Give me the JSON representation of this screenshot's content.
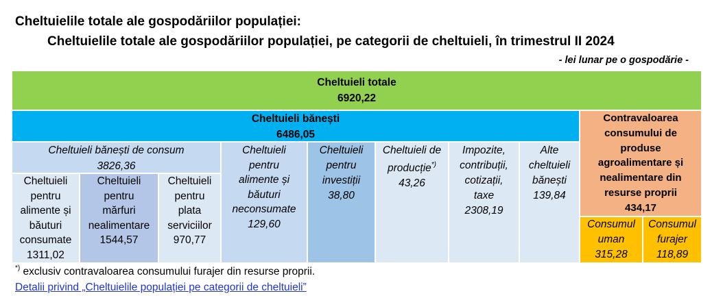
{
  "title_main": "Cheltuielile totale ale gospodăriilor populației:",
  "title_sub": "Cheltuielile totale ale gospodăriilor populației, pe categorii de cheltuieli, în trimestrul II 2024",
  "unit_note": "- lei lunar pe o gospodărie -",
  "colors": {
    "total": "#92d050",
    "banesti": "#00b0f0",
    "contravaloare": "#f4b183",
    "consum_group": "#c5d9f1",
    "consum_sub_mid": "#b4c6e7",
    "alimente_neconsumate": "#c5d9f1",
    "investitii": "#9dc3e6",
    "light": "#dde8f5",
    "gold": "#ffc000"
  },
  "table": {
    "total": {
      "label": "Cheltuieli totale",
      "value": "6920,22"
    },
    "banesti": {
      "label": "Cheltuieli bănești",
      "value": "6486,05"
    },
    "contravaloare": {
      "lines": [
        "Contravaloarea",
        "consumului de",
        "produse",
        "agroalimentare și",
        "nealimentare din",
        "resurse proprii"
      ],
      "value": "434,17",
      "uman": {
        "lines": [
          "Consumul",
          "uman"
        ],
        "value": "315,28"
      },
      "furajer": {
        "lines": [
          "Consumul",
          "furajer"
        ],
        "value": "118,89"
      }
    },
    "consum": {
      "label": "Cheltuieli bănești de consum",
      "value": "3826,36",
      "alimente": {
        "lines": [
          "Cheltuieli",
          "pentru",
          "alimente și",
          "băuturi",
          "consumate"
        ],
        "value": "1311,02"
      },
      "marfuri": {
        "lines": [
          "Cheltuieli",
          "pentru",
          "mărfuri",
          "nealimentare"
        ],
        "value": "1544,57"
      },
      "servicii": {
        "lines": [
          "Cheltuieli",
          "pentru",
          "plata",
          "serviciilor"
        ],
        "value": "970,77"
      }
    },
    "alimente_neconsumate": {
      "lines": [
        "Cheltuieli",
        "pentru",
        "alimente și",
        "băuturi",
        "neconsumate"
      ],
      "value": "129,60"
    },
    "investitii": {
      "lines": [
        "Cheltuieli",
        "pentru",
        "investiții"
      ],
      "value": "38,80"
    },
    "productie": {
      "lines": [
        "Cheltuieli de",
        "producție"
      ],
      "sup": "*)",
      "value": "43,26"
    },
    "impozite": {
      "lines": [
        "Impozite,",
        "contribuții,",
        "cotizații,",
        "taxe"
      ],
      "value": "2308,19"
    },
    "alte": {
      "lines": [
        "Alte",
        "cheltuieli",
        "bănești"
      ],
      "value": "139,84"
    }
  },
  "footnote": {
    "sup": "*)",
    "text": " exclusiv contravaloarea consumului furajer din resurse proprii."
  },
  "link_text": "Detalii privind „Cheltuielile populației pe categorii de cheltuieli”"
}
